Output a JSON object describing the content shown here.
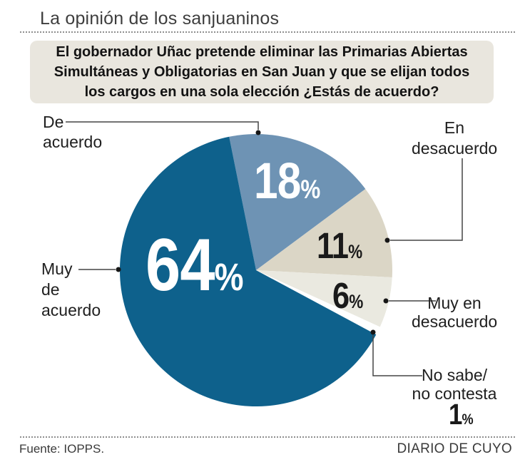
{
  "page": {
    "title": "La opinión de los sanjuaninos"
  },
  "question": {
    "lines": [
      "El gobernador Uñac pretende eliminar las Primarias Abiertas",
      "Simultáneas y Obligatorias en San Juan y que se elijan todos",
      "los cargos en una sola elección ¿Estás de acuerdo?"
    ]
  },
  "chart_data": {
    "type": "pie",
    "title": "La opinión de los sanjuaninos",
    "question": "El gobernador Uñac pretende eliminar las Primarias Abiertas Simultáneas y Obligatorias en San Juan y que se elijan todos los cargos en una sola elección ¿Estás de acuerdo?",
    "unit": "%",
    "percent_sign": "%",
    "start_angle_deg": -11.4,
    "legend_position": "callout-labels",
    "slices": [
      {
        "label": "De acuerdo",
        "label_lines": [
          "De",
          "acuerdo"
        ],
        "value": 18,
        "color": "#6e93b4",
        "value_color": "#ffffff"
      },
      {
        "label": "En desacuerdo",
        "label_lines": [
          "En",
          "desacuerdo"
        ],
        "value": 11,
        "color": "#dbd6c6",
        "value_color": "#1a1a1a"
      },
      {
        "label": "Muy en desacuerdo",
        "label_lines": [
          "Muy en",
          "desacuerdo"
        ],
        "value": 6,
        "color": "#eae9e0",
        "value_color": "#1a1a1a"
      },
      {
        "label": "No sabe/no contesta",
        "label_lines": [
          "No sabe/",
          "no contesta"
        ],
        "value": 1,
        "color": "#ffffff",
        "value_color": "#1a1a1a"
      },
      {
        "label": "Muy de acuerdo",
        "label_lines": [
          "Muy",
          "de",
          "acuerdo"
        ],
        "value": 64,
        "color": "#0e618c",
        "value_color": "#ffffff"
      }
    ]
  },
  "footer": {
    "source": "Fuente: IOPPS.",
    "credit": "DIARIO DE CUYO"
  }
}
